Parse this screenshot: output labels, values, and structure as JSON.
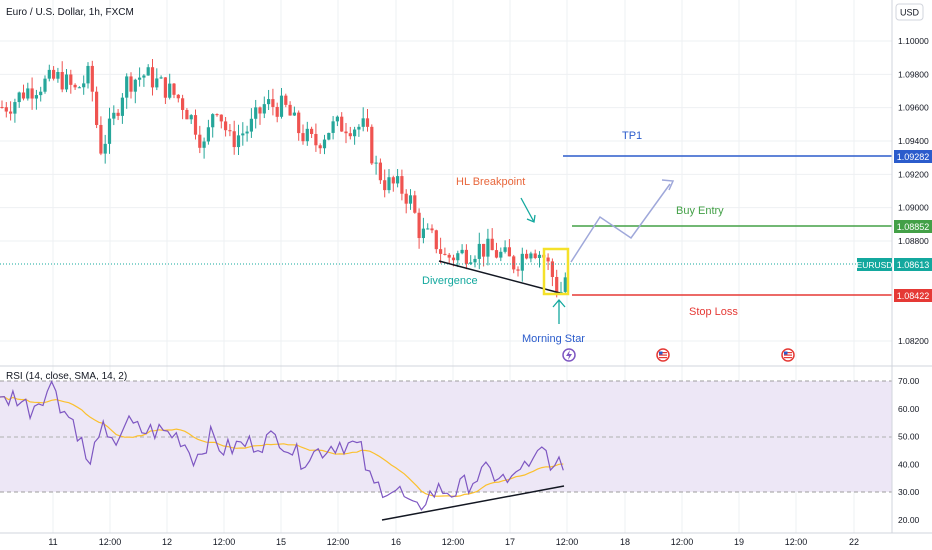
{
  "header": {
    "title": "Euro / U.S. Dollar, 1h, FXCM",
    "currency_button": "USD"
  },
  "chart_data": [
    {
      "type": "candlestick",
      "title": "Euro / U.S. Dollar, 1h, FXCM",
      "ylim": [
        1.0805,
        1.1006
      ],
      "yticks": [
        "1.10000",
        "1.09800",
        "1.09600",
        "1.09400",
        "1.09200",
        "1.09000",
        "1.08800",
        "1.08200"
      ],
      "ytick_values": [
        1.1,
        1.098,
        1.096,
        1.094,
        1.092,
        1.09,
        1.088,
        1.082
      ],
      "xticks": [
        "11",
        "12:00",
        "12",
        "12:00",
        "15",
        "12:00",
        "16",
        "12:00",
        "17",
        "12:00",
        "18",
        "12:00",
        "19",
        "12:00",
        "22"
      ],
      "price_levels": [
        {
          "name": "TP1",
          "value": 1.09282,
          "label": "1.09282",
          "color": "#2b5ccc"
        },
        {
          "name": "Buy Entry",
          "value": 1.08852,
          "label": "1.08852",
          "color": "#43a047"
        },
        {
          "name": "Stop Loss",
          "value": 1.08422,
          "label": "1.08422",
          "color": "#e53935"
        }
      ],
      "last_price": {
        "symbol": "EURUSD",
        "value": 1.08613,
        "label": "1.08613",
        "color": "#13a89e"
      },
      "annotations": {
        "hl_breakpoint": "HL Breakpoint",
        "divergence": "Divergence",
        "morning_star": "Morning Star"
      },
      "projected_path": [
        [
          0,
          1.0866
        ],
        [
          1,
          1.0892
        ],
        [
          2,
          1.0879
        ],
        [
          3,
          1.0912
        ]
      ],
      "candles": []
    },
    {
      "type": "line",
      "title": "RSI (14, close, SMA, 14, 2)",
      "ylim": [
        18,
        72
      ],
      "yticks": [
        "70.00",
        "60.00",
        "50.00",
        "40.00",
        "30.00",
        "20.00"
      ],
      "ytick_values": [
        70,
        60,
        50,
        40,
        30,
        20
      ],
      "upper_band": 70,
      "middle_band": 50,
      "lower_band": 30,
      "colors": {
        "rsi": "#7e57c2",
        "sma": "#fbc02d",
        "band": "#ede7f6"
      }
    }
  ],
  "colors": {
    "up": "#26a69a",
    "down": "#ef5350",
    "grid": "#eef0f3",
    "text": "#131722"
  }
}
